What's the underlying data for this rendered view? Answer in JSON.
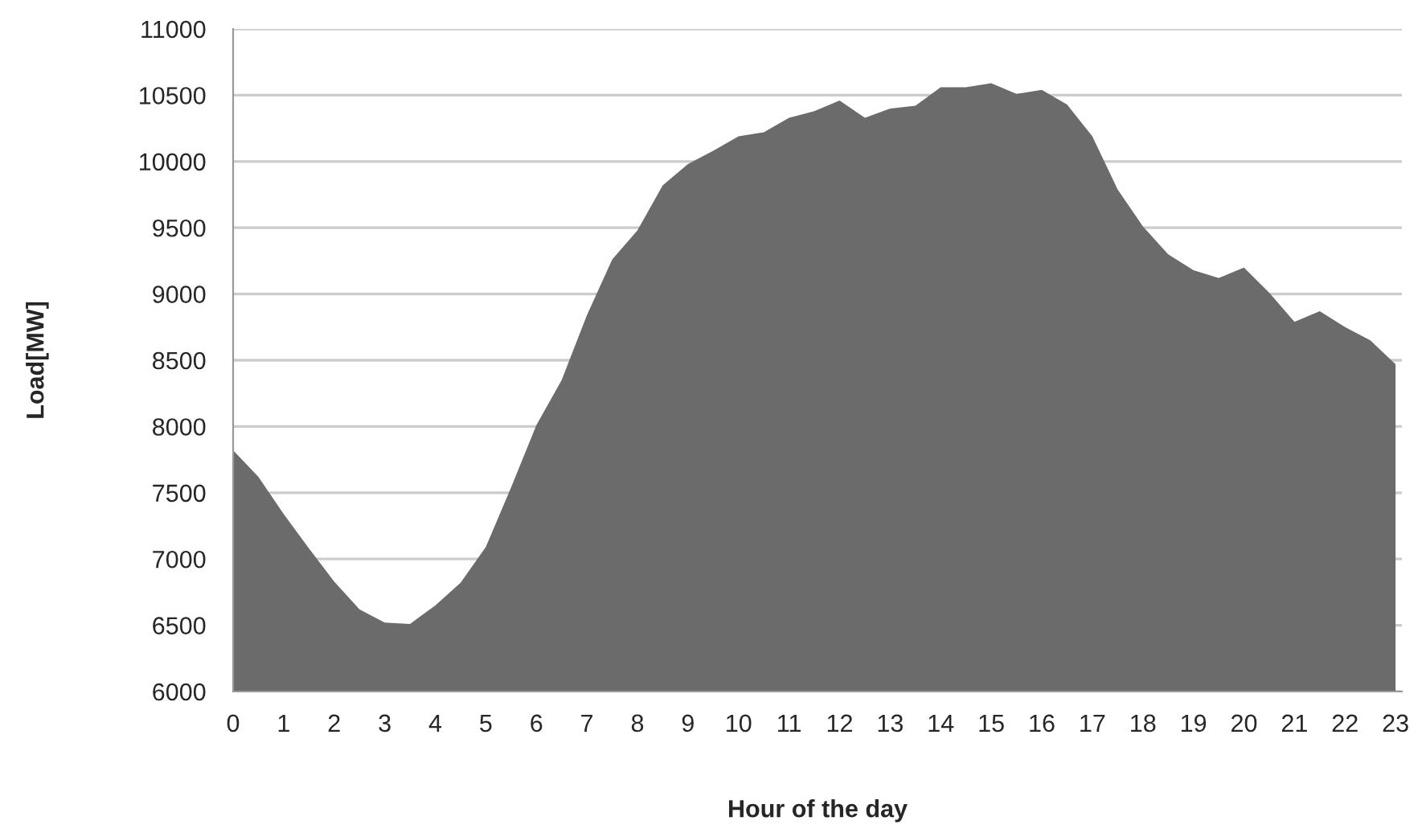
{
  "chart_data": {
    "type": "area",
    "xlabel": "Hour of the day",
    "ylabel": "Load[MW]",
    "categories": [
      "0",
      null,
      "1",
      null,
      "2",
      null,
      "3",
      null,
      "4",
      null,
      "5",
      null,
      "6",
      null,
      "7",
      null,
      "8",
      null,
      "9",
      null,
      "10",
      null,
      "11",
      null,
      "12",
      null,
      "13",
      null,
      "14",
      null,
      "15",
      null,
      "16",
      null,
      "17",
      null,
      "18",
      null,
      "19",
      null,
      "20",
      null,
      "21",
      null,
      "22",
      null,
      "23"
    ],
    "series": [
      {
        "color": "#6b6b6b",
        "values": [
          7820,
          7620,
          7340,
          7080,
          6830,
          6620,
          6520,
          6510,
          6650,
          6820,
          7090,
          7540,
          8010,
          8350,
          8840,
          9260,
          9480,
          9820,
          9980,
          10080,
          10190,
          10220,
          10330,
          10380,
          10460,
          10330,
          10400,
          10420,
          10560,
          10560,
          10590,
          10510,
          10540,
          10430,
          10190,
          9790,
          9510,
          9300,
          9180,
          9120,
          9200,
          9010,
          8790,
          8870,
          8750,
          8650,
          8470
        ]
      }
    ],
    "ylim": [
      6000,
      11000
    ],
    "yticks": [
      6000,
      6500,
      7000,
      7500,
      8000,
      8500,
      9000,
      9500,
      10000,
      10500,
      11000
    ],
    "grid": "y",
    "legend": false
  }
}
